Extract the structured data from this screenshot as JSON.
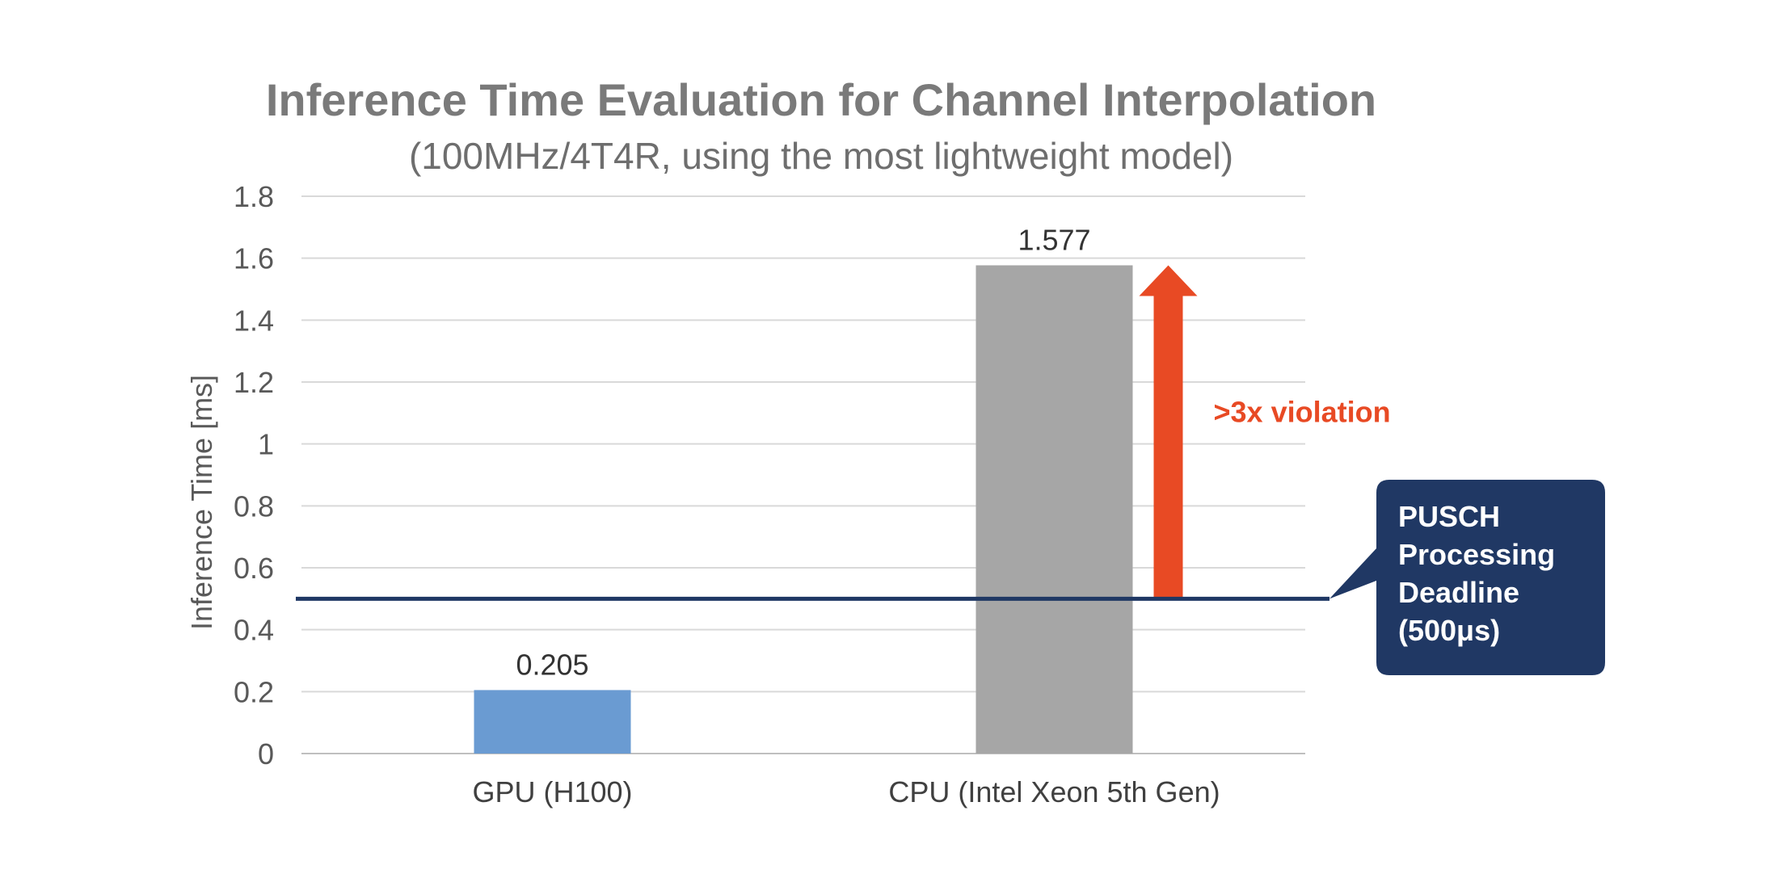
{
  "chart_data": {
    "type": "bar",
    "title": "Inference Time Evaluation for Channel Interpolation",
    "subtitle": "(100MHz/4T4R, using the most lightweight model)",
    "xlabel": "",
    "ylabel": "Inference Time [ms]",
    "ylim": [
      0,
      1.8
    ],
    "yticks": [
      0,
      0.2,
      0.4,
      0.6,
      0.8,
      1,
      1.2,
      1.4,
      1.6,
      1.8
    ],
    "ytick_labels": [
      "0",
      "0.2",
      "0.4",
      "0.6",
      "0.8",
      "1",
      "1.2",
      "1.4",
      "1.6",
      "1.8"
    ],
    "grid": true,
    "categories": [
      "GPU (H100)",
      "CPU (Intel Xeon 5th Gen)"
    ],
    "values": [
      0.205,
      1.577
    ],
    "value_labels": [
      "0.205",
      "1.577"
    ],
    "bar_colors": [
      "#6a9bd2",
      "#a6a6a6"
    ],
    "threshold": {
      "value": 0.5,
      "color": "#1f3864",
      "callout_lines": [
        "PUSCH",
        "Processing",
        "Deadline",
        "(500μs)"
      ],
      "callout_color": "#203864"
    },
    "annotation": {
      "text": ">3x violation",
      "color": "#e84a24",
      "from_value": 0.5,
      "to_value": 1.577,
      "category_index": 1
    }
  }
}
